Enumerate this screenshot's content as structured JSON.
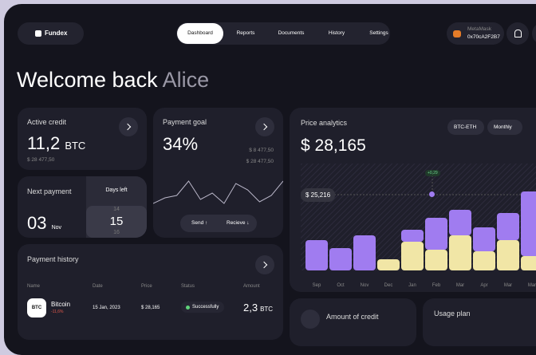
{
  "nav": {
    "brand": "Fundex",
    "tabs": [
      "Dashboard",
      "Reports",
      "Documents",
      "History",
      "Settings"
    ],
    "wallet": {
      "name": "MetaMask",
      "address": "0x70cA2F2B7"
    }
  },
  "greeting": {
    "text": "Welcome back",
    "name": "Alice"
  },
  "active_credit": {
    "title": "Active credit",
    "amount": "11,2",
    "unit": "BTC",
    "sub": "$ 28 477,50"
  },
  "payment_goal": {
    "title": "Payment goal",
    "percent": "34%",
    "levels": [
      "$ 8 477,50",
      "$ 28 477,50"
    ],
    "line": [
      10,
      17,
      20,
      38,
      15,
      23,
      10,
      35,
      27,
      12,
      20,
      38
    ],
    "buttons": [
      "Send ↑",
      "Recieve ↓"
    ]
  },
  "next_payment": {
    "title": "Next payment",
    "day": "03",
    "month": "Nov",
    "days_left_label": "Days left",
    "days": [
      "14",
      "15",
      "16"
    ]
  },
  "price_analytics": {
    "title": "Price analytics",
    "price": "$ 28,165",
    "pair": "BTC-ETH",
    "period": "Monthly",
    "badge": "$ 25,216",
    "tooltip": "+0,29",
    "months": [
      "Sep",
      "Oct",
      "Nov",
      "Dec",
      "Jan",
      "Feb",
      "Mar",
      "Apr",
      "Mar",
      "Mar"
    ],
    "series": [
      {
        "color": "#f1e6a6",
        "values": [
          0,
          0,
          0,
          14,
          36,
          26,
          44,
          24,
          38,
          18
        ]
      },
      {
        "color": "#a07cf0",
        "values": [
          38,
          28,
          44,
          0,
          15,
          40,
          32,
          30,
          34,
          81
        ]
      }
    ]
  },
  "payment_history": {
    "title": "Payment history",
    "columns": [
      "Name",
      "Date",
      "Price",
      "Status",
      "Amount"
    ],
    "rows": [
      {
        "icon": "BTC",
        "name": "Bitcoin",
        "change": "-11,6%",
        "date": "15 Jan, 2023",
        "price": "$ 28,165",
        "status": "Successfully",
        "amount": "2,3",
        "unit": "BTC"
      }
    ]
  },
  "amount_of_credit": {
    "title": "Amount of credit"
  },
  "usage_plan": {
    "title": "Usage plan"
  }
}
